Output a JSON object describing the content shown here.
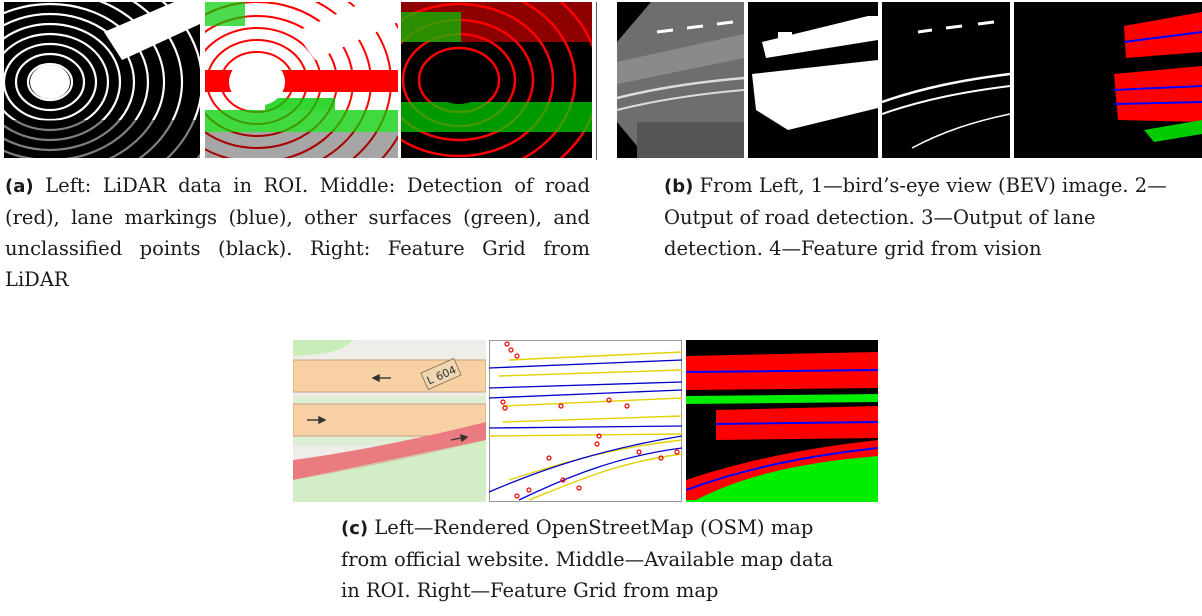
{
  "figure": {
    "a": {
      "label": "(a)",
      "text": "Left: LiDAR data in ROI. Middle: Detection of road (red), lane markings (blue), other surfaces (green), and unclassified points (black). Right: Feature Grid from LiDAR",
      "panel_names": [
        "lidar-roi-image",
        "lidar-detection-image",
        "lidar-feature-grid-image"
      ]
    },
    "b": {
      "label": "(b)",
      "text": "From Left, 1—bird’s-eye view (BEV) image. 2—Output of road detection. 3—Output of lane detection. 4—Feature grid from vision",
      "panel_names": [
        "bev-image",
        "road-detection-image",
        "lane-detection-image",
        "vision-feature-grid-image"
      ]
    },
    "c": {
      "label": "(c)",
      "text": "Left—Rendered OpenStreetMap (OSM) map from official website. Middle—Available map data in ROI. Right—Feature Grid from map",
      "panel_names": [
        "osm-map-image",
        "map-data-roi-image",
        "map-feature-grid-image"
      ],
      "map_road_label": "L 604"
    }
  },
  "colors": {
    "road": "#ff0000",
    "lane": "#0000ff",
    "other": "#00ee00",
    "unclassified": "#000000",
    "osm_road": "#f7d1a4",
    "osm_green": "#c8edb9",
    "osm_red": "#ea7b80"
  }
}
